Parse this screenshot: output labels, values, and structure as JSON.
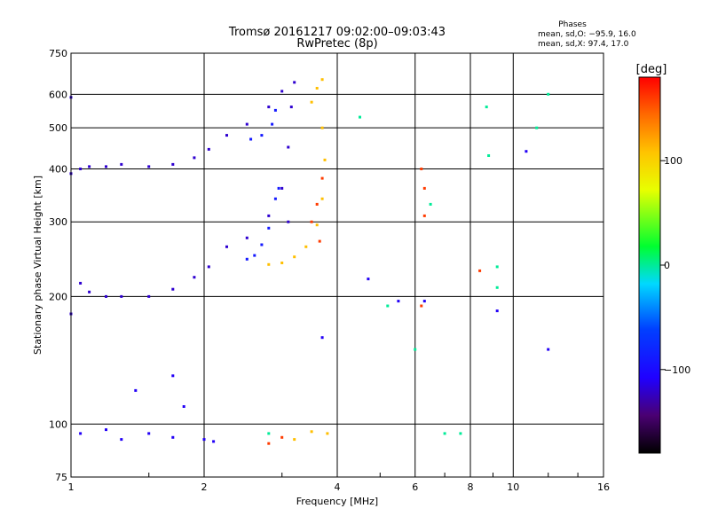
{
  "chart_data": {
    "type": "scatter",
    "title": "Tromsø 20161217 09:02:00–09:03:43",
    "subtitle": "RwPretec (8p)",
    "xlabel": "Frequency [MHz]",
    "ylabel": "Stationary phase Virtual Height [km]",
    "x_scale": "log2",
    "y_scale": "log",
    "xlim": [
      1,
      16
    ],
    "ylim": [
      75,
      750
    ],
    "x_ticks": [
      1,
      2,
      4,
      6,
      8,
      10,
      16
    ],
    "x_tick_labels": [
      "1",
      "2",
      "4",
      "6",
      "8",
      "10",
      "16"
    ],
    "y_ticks": [
      75,
      100,
      200,
      300,
      400,
      500,
      600,
      750
    ],
    "y_tick_labels": [
      "75",
      "100",
      "200",
      "300",
      "400",
      "500",
      "600",
      "750"
    ],
    "grid": true,
    "phase_stats": {
      "title": "Phases",
      "line_o": "mean, sd,O: −95.9, 16.0",
      "line_x": "mean, sd,X:  97.4, 17.0"
    },
    "colorbar": {
      "label": "[deg]",
      "range": [
        -180,
        180
      ],
      "ticks": [
        100,
        0,
        -100
      ],
      "tick_labels": [
        "100",
        "0",
        "−100"
      ]
    },
    "series": [
      {
        "color_phase": -120,
        "points": [
          [
            1.0,
            182
          ],
          [
            1.0,
            390
          ],
          [
            1.0,
            590
          ],
          [
            1.05,
            215
          ],
          [
            1.05,
            400
          ],
          [
            1.1,
            205
          ],
          [
            1.1,
            405
          ],
          [
            1.2,
            200
          ],
          [
            1.2,
            405
          ],
          [
            1.3,
            200
          ],
          [
            1.3,
            410
          ],
          [
            1.5,
            200
          ],
          [
            1.5,
            405
          ],
          [
            1.7,
            208
          ],
          [
            1.7,
            410
          ],
          [
            1.9,
            222
          ],
          [
            1.9,
            425
          ],
          [
            2.05,
            235
          ],
          [
            2.05,
            445
          ],
          [
            2.25,
            262
          ],
          [
            2.25,
            480
          ],
          [
            2.5,
            275
          ],
          [
            2.5,
            510
          ],
          [
            2.8,
            310
          ],
          [
            2.8,
            560
          ],
          [
            3.0,
            360
          ],
          [
            3.0,
            610
          ],
          [
            3.1,
            300
          ],
          [
            3.1,
            450
          ],
          [
            3.15,
            560
          ],
          [
            3.2,
            640
          ]
        ]
      },
      {
        "color_phase": -90,
        "points": [
          [
            2.5,
            245
          ],
          [
            2.6,
            250
          ],
          [
            2.7,
            265
          ],
          [
            2.8,
            290
          ],
          [
            2.9,
            340
          ],
          [
            2.95,
            360
          ],
          [
            2.55,
            470
          ],
          [
            2.7,
            480
          ],
          [
            2.85,
            510
          ],
          [
            2.9,
            550
          ]
        ]
      },
      {
        "color_phase": 110,
        "points": [
          [
            2.8,
            238
          ],
          [
            3.0,
            240
          ],
          [
            3.2,
            248
          ],
          [
            3.4,
            262
          ],
          [
            3.6,
            295
          ],
          [
            3.7,
            340
          ],
          [
            3.75,
            420
          ],
          [
            3.7,
            500
          ],
          [
            3.5,
            575
          ],
          [
            3.6,
            620
          ],
          [
            3.7,
            650
          ],
          [
            3.2,
            92
          ],
          [
            3.5,
            96
          ],
          [
            3.8,
            95
          ]
        ]
      },
      {
        "color_phase": 160,
        "points": [
          [
            3.5,
            300
          ],
          [
            3.6,
            330
          ],
          [
            3.7,
            380
          ],
          [
            3.65,
            270
          ],
          [
            2.8,
            90
          ],
          [
            3.0,
            93
          ],
          [
            6.2,
            190
          ],
          [
            6.2,
            400
          ],
          [
            6.3,
            310
          ],
          [
            6.3,
            360
          ],
          [
            8.4,
            230
          ]
        ]
      },
      {
        "color_phase": -110,
        "points": [
          [
            1.05,
            95
          ],
          [
            1.2,
            97
          ],
          [
            1.3,
            92
          ],
          [
            1.5,
            95
          ],
          [
            1.7,
            93
          ],
          [
            2.0,
            92
          ],
          [
            2.1,
            91
          ],
          [
            1.4,
            120
          ],
          [
            1.7,
            130
          ],
          [
            1.8,
            110
          ],
          [
            4.7,
            220
          ],
          [
            5.5,
            195
          ],
          [
            6.3,
            195
          ],
          [
            9.2,
            185
          ],
          [
            10.7,
            440
          ],
          [
            12.0,
            150
          ],
          [
            3.7,
            160
          ]
        ]
      },
      {
        "color_phase": 0,
        "points": [
          [
            2.8,
            95
          ],
          [
            4.5,
            530
          ],
          [
            5.2,
            190
          ],
          [
            6.0,
            150
          ],
          [
            6.5,
            330
          ],
          [
            7.0,
            95
          ],
          [
            7.6,
            95
          ],
          [
            8.7,
            560
          ],
          [
            9.2,
            210
          ],
          [
            9.2,
            235
          ],
          [
            11.3,
            500
          ],
          [
            12.0,
            600
          ],
          [
            8.8,
            430
          ]
        ]
      }
    ]
  }
}
